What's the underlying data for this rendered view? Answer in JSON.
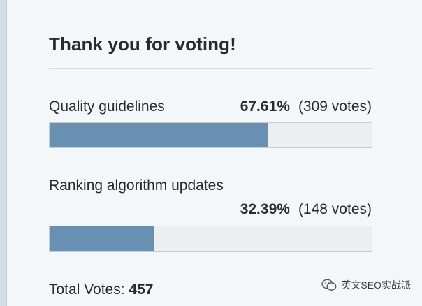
{
  "poll": {
    "title": "Thank you for voting!",
    "options": [
      {
        "label": "Quality guidelines",
        "percent_text": "67.61%",
        "votes_text": "(309 votes)",
        "fraction": 0.6761
      },
      {
        "label": "Ranking algorithm updates",
        "percent_text": "32.39%",
        "votes_text": "(148 votes)",
        "fraction": 0.3239
      }
    ],
    "total_label": "Total Votes:",
    "total_value": "457"
  },
  "watermark": {
    "text": "英文SEO实战派",
    "icon": "wechat-icon"
  },
  "colors": {
    "bar_fill": "#6890b2",
    "bar_track": "#eceef0",
    "panel_background": "#f4f7fa"
  }
}
